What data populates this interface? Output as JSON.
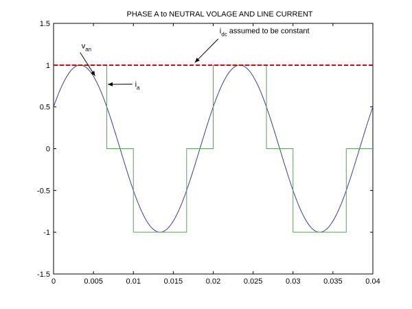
{
  "chart_data": {
    "type": "line",
    "title": "PHASE A to NEUTRAL VOLAGE AND LINE CURRENT",
    "xlabel": "",
    "ylabel": "",
    "xlim": [
      0,
      0.04
    ],
    "ylim": [
      -1.5,
      1.5
    ],
    "xticks": [
      0,
      0.005,
      0.01,
      0.015,
      0.02,
      0.025,
      0.03,
      0.035,
      0.04
    ],
    "xtick_labels": [
      "0",
      "0.005",
      "0.01",
      "0.015",
      "0.02",
      "0.025",
      "0.03",
      "0.035",
      "0.04"
    ],
    "yticks": [
      -1.5,
      -1,
      -0.5,
      0,
      0.5,
      1,
      1.5
    ],
    "ytick_labels": [
      "-1.5",
      "-1",
      "-0.5",
      "0",
      "0.5",
      "1",
      "1.5"
    ],
    "grid": false,
    "series": [
      {
        "name": "",
        "kind": "sine",
        "amplitude": 1,
        "frequency_hz": 50,
        "phase_deg": 30,
        "color": "#3a3aa8"
      },
      {
        "name": "",
        "kind": "step",
        "color": "#5aa05a",
        "x": [
          0,
          0.00667,
          0.00667,
          0.01,
          0.01,
          0.01667,
          0.01667,
          0.02,
          0.02,
          0.02667,
          0.02667,
          0.03,
          0.03,
          0.03667,
          0.03667,
          0.04
        ],
        "y": [
          1,
          1,
          0,
          0,
          -1,
          -1,
          0,
          0,
          1,
          1,
          0,
          0,
          -1,
          -1,
          0,
          0
        ]
      },
      {
        "name": "",
        "kind": "hline",
        "y": 1,
        "color": "#c00000",
        "style": "dashed"
      }
    ],
    "annotations": [
      {
        "text": "v",
        "sub": "an",
        "x": 0.0035,
        "y": 1.2,
        "arrow_to": [
          0.0052,
          0.87
        ]
      },
      {
        "text": "i",
        "sub": "dc",
        "text_after": " assumed to be constant",
        "x": 0.0208,
        "y": 1.38,
        "arrow_to": [
          0.0177,
          1.03
        ]
      },
      {
        "text": "i",
        "sub": "a",
        "x": 0.0102,
        "y": 0.74,
        "arrow_to": [
          0.0068,
          0.77
        ]
      }
    ]
  }
}
